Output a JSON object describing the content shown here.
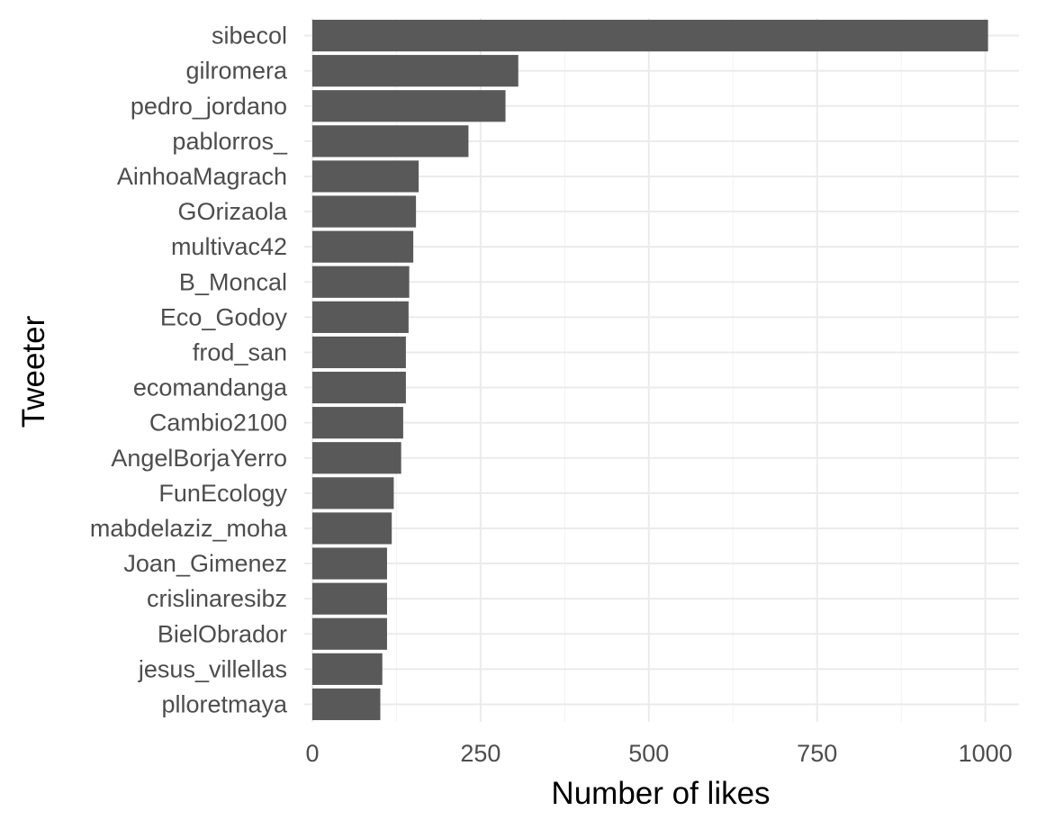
{
  "chart_data": {
    "type": "bar",
    "orientation": "horizontal",
    "categories": [
      "sibecol",
      "gilromera",
      "pedro_jordano",
      "pablorros_",
      "AinhoaMagrach",
      "GOrizaola",
      "multivac42",
      "B_Moncal",
      "Eco_Godoy",
      "frod_san",
      "ecomandanga",
      "Cambio2100",
      "AngelBorjaYerro",
      "FunEcology",
      "mabdelaziz_moha",
      "Joan_Gimenez",
      "crislinaresibz",
      "BielObrador",
      "jesus_villellas",
      "plloretmaya"
    ],
    "values": [
      1004,
      306,
      287,
      232,
      158,
      154,
      150,
      144,
      143,
      139,
      139,
      135,
      132,
      121,
      118,
      111,
      111,
      111,
      104,
      101
    ],
    "xlabel": "Number of likes",
    "ylabel": "Tweeter",
    "xlim": [
      -12,
      1050
    ],
    "xticks": [
      0,
      250,
      500,
      750,
      1000
    ],
    "x_tick_labels": [
      "0",
      "250",
      "500",
      "750",
      "1000"
    ],
    "grid": true,
    "legend": "none",
    "bar_color": "#595959"
  }
}
